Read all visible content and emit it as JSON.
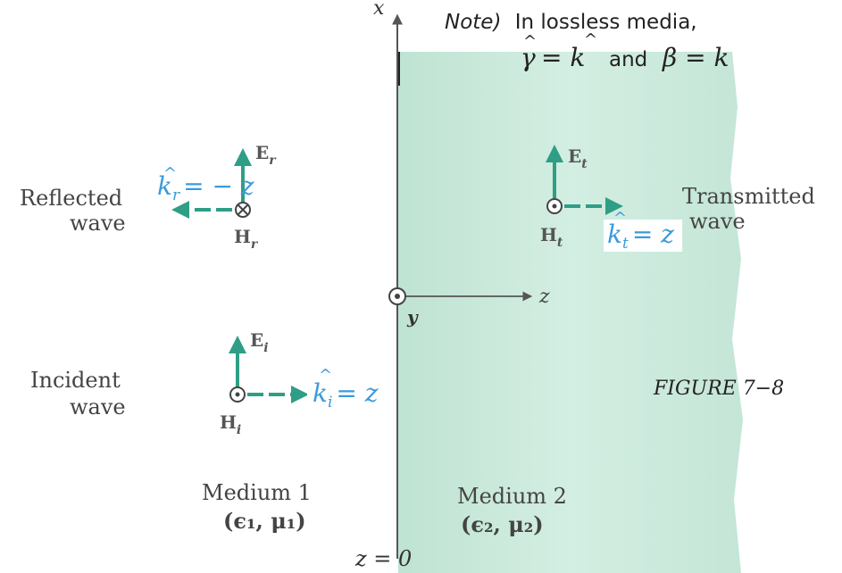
{
  "note": {
    "prefix": "Note)",
    "line1": "In lossless media,",
    "gamma": "γ",
    "eq1": "= k",
    "and": "and",
    "eq2": "β = k"
  },
  "axes": {
    "x": "x",
    "z": "z",
    "y": "y",
    "boundary": "z = 0"
  },
  "reflected": {
    "label_line1": "Reflected",
    "label_line2": "wave",
    "E_sym": "E",
    "E_sub": "r",
    "H_sym": "H",
    "H_sub": "r",
    "k_sym": "k",
    "k_sub": "r",
    "k_eq": "= − z"
  },
  "transmitted": {
    "label_line1": "Transmitted",
    "label_line2": "wave",
    "E_sym": "E",
    "E_sub": "t",
    "H_sym": "H",
    "H_sub": "t",
    "k_sym": "k",
    "k_sub": "t",
    "k_eq": "= z"
  },
  "incident": {
    "label_line1": "Incident",
    "label_line2": "wave",
    "E_sym": "E",
    "E_sub": "i",
    "H_sym": "H",
    "H_sub": "i",
    "k_sym": "k",
    "k_sub": "i",
    "k_eq": "= z"
  },
  "media": {
    "m1_name": "Medium 1",
    "m1_params": "(ϵ₁, μ₁)",
    "m2_name": "Medium 2",
    "m2_params": "(ϵ₂, μ₂)"
  },
  "figure_label": "FIGURE 7−8",
  "colors": {
    "medium2_fill": "#cbe8dc",
    "vector_teal": "#2f9e86",
    "annotation_blue": "#3a9bd9",
    "text_gray": "#444444"
  }
}
